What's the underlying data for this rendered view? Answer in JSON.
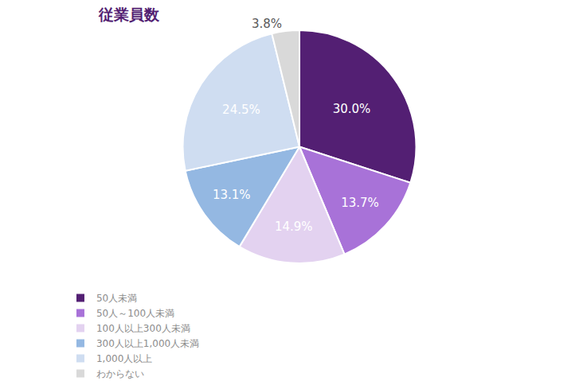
{
  "chart_data": {
    "type": "pie",
    "title": "従業員数",
    "categories": [
      "50人未満",
      "50人～100人未満",
      "100人以上300人未満",
      "300人以上1,000人未満",
      "1,000人以上",
      "わからない"
    ],
    "values": [
      30.0,
      13.7,
      14.9,
      13.1,
      24.5,
      3.8
    ],
    "value_labels": [
      "30.0%",
      "13.7%",
      "14.9%",
      "13.1%",
      "24.5%",
      "3.8%"
    ],
    "colors": [
      "#531f73",
      "#a872d8",
      "#e3d2f0",
      "#94b8e2",
      "#cfddf1",
      "#d9d9d9"
    ],
    "data_labels": true,
    "legend": "bottom"
  }
}
